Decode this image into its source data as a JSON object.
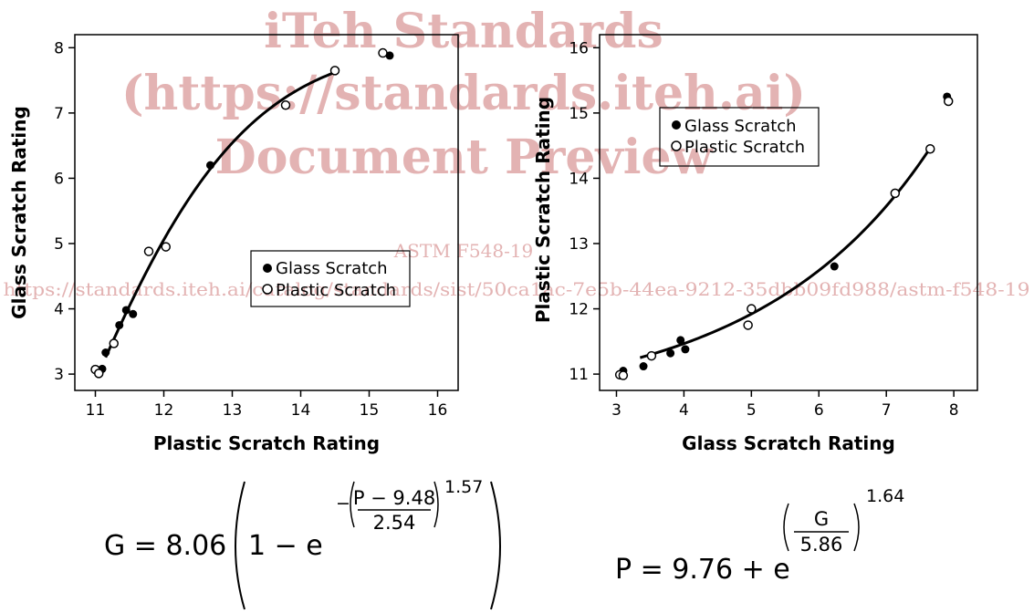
{
  "watermark": {
    "line1": "iTeh Standards",
    "line2": "(https://standards.iteh.ai)",
    "line3": "Document Preview",
    "line4": "ASTM F548-19",
    "line5": "https://standards.iteh.ai/catalog/standards/sist/50ca1ac-7e5b-44ea-9212-35dbb09fd988/astm-f548-19"
  },
  "chart_data": [
    {
      "type": "scatter",
      "xlabel": "Plastic Scratch Rating",
      "ylabel": "Glass Scratch Rating",
      "xlim": [
        10.7,
        16.3
      ],
      "ylim": [
        2.75,
        8.2
      ],
      "xticks": [
        11,
        12,
        13,
        14,
        15,
        16
      ],
      "yticks": [
        3,
        4,
        5,
        6,
        7,
        8
      ],
      "legend_position": "center-right",
      "series": [
        {
          "name": "Glass Scratch",
          "marker": "filled-circle",
          "points": [
            [
              11.1,
              3.08
            ],
            [
              11.15,
              3.33
            ],
            [
              11.35,
              3.75
            ],
            [
              11.45,
              3.98
            ],
            [
              11.55,
              3.92
            ],
            [
              12.68,
              6.2
            ],
            [
              15.3,
              7.88
            ]
          ]
        },
        {
          "name": "Plastic Scratch",
          "marker": "open-circle",
          "points": [
            [
              11.0,
              3.07
            ],
            [
              11.05,
              3.01
            ],
            [
              11.27,
              3.47
            ],
            [
              11.78,
              4.88
            ],
            [
              12.03,
              4.95
            ],
            [
              13.78,
              7.12
            ],
            [
              14.5,
              7.65
            ],
            [
              15.2,
              7.92
            ]
          ]
        }
      ],
      "fit": {
        "type": "line",
        "x_range": [
          11.15,
          14.5
        ],
        "equation": "G = 8.06 (1 − e^(−((P − 9.48)/2.54)^1.57))"
      }
    },
    {
      "type": "scatter",
      "xlabel": "Glass Scratch Rating",
      "ylabel": "Plastic Scratch Rating",
      "xlim": [
        2.75,
        8.35
      ],
      "ylim": [
        10.75,
        16.2
      ],
      "xticks": [
        3,
        4,
        5,
        6,
        7,
        8
      ],
      "yticks": [
        11,
        12,
        13,
        14,
        15,
        16
      ],
      "legend_position": "top-left",
      "series": [
        {
          "name": "Glass Scratch",
          "marker": "filled-circle",
          "points": [
            [
              3.1,
              11.05
            ],
            [
              3.4,
              11.12
            ],
            [
              3.8,
              11.32
            ],
            [
              3.95,
              11.52
            ],
            [
              4.02,
              11.38
            ],
            [
              6.23,
              12.65
            ],
            [
              7.9,
              15.25
            ]
          ]
        },
        {
          "name": "Plastic Scratch",
          "marker": "open-circle",
          "points": [
            [
              3.05,
              10.99
            ],
            [
              3.1,
              10.98
            ],
            [
              3.52,
              11.28
            ],
            [
              4.95,
              11.75
            ],
            [
              5.0,
              12.0
            ],
            [
              7.13,
              13.77
            ],
            [
              7.65,
              14.45
            ],
            [
              7.92,
              15.18
            ]
          ]
        }
      ],
      "fit": {
        "type": "line",
        "x_range": [
          3.35,
          7.65
        ],
        "equation": "P = 9.76 + e^((G/5.86)^1.64)"
      }
    }
  ],
  "equations": {
    "left": {
      "lhs": "G = 8.06",
      "one_minus": "1 − e",
      "neg": "−",
      "num": "P − 9.48",
      "den": "2.54",
      "exp": "1.57"
    },
    "right": {
      "lhs": "P = 9.76 + e",
      "num": "G",
      "den": "5.86",
      "exp": "1.64"
    }
  }
}
